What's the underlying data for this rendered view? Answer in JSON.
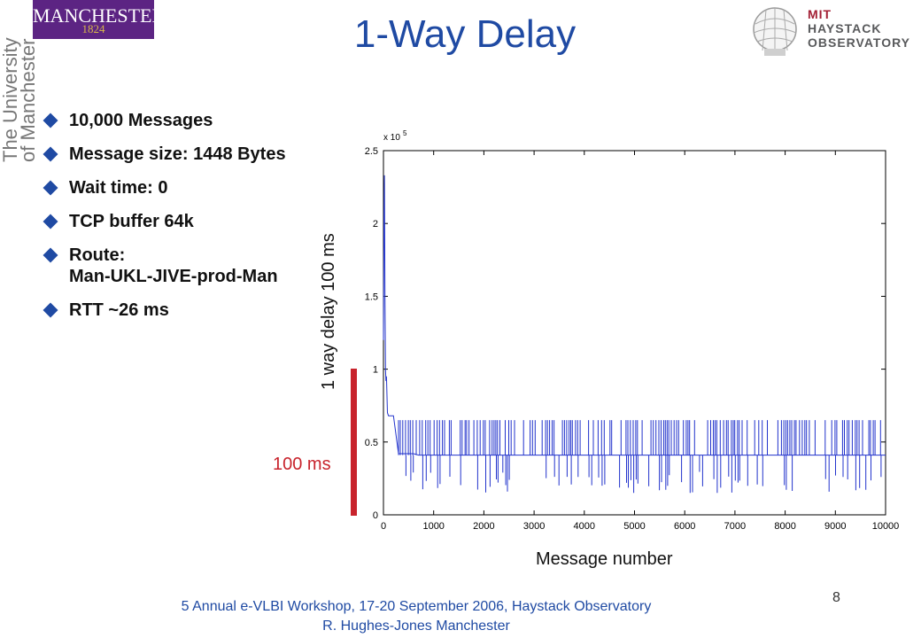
{
  "header": {
    "title": "1-Way Delay",
    "manchester_logo_text": "MANCHESTER",
    "manchester_logo_year": "1824",
    "university_line1": "The University",
    "university_line2": "of Manchester",
    "mit_line1": "MIT",
    "mit_line2": "HAYSTACK",
    "mit_line3": "OBSERVATORY"
  },
  "bullets": [
    "10,000 Messages",
    "Message size: 1448 Bytes",
    "Wait time: 0",
    "TCP buffer 64k",
    "Route:\nMan-UKL-JIVE-prod-Man",
    "RTT ~26 ms"
  ],
  "chart_data": {
    "type": "line",
    "title": "",
    "xlabel": "Message number",
    "ylabel": "1 way delay 100 ms",
    "exponent_label": "x 10",
    "exponent_power": "5",
    "xlim": [
      0,
      10000
    ],
    "ylim": [
      0,
      2.5
    ],
    "x_ticks": [
      0,
      1000,
      2000,
      3000,
      4000,
      5000,
      6000,
      7000,
      8000,
      9000,
      10000
    ],
    "y_ticks": [
      0,
      0.5,
      1,
      1.5,
      2,
      2.5
    ],
    "x_tick_labels": [
      "0",
      "1000",
      "2000",
      "3000",
      "4000",
      "5000",
      "6000",
      "7000",
      "8000",
      "9000",
      "10000"
    ],
    "y_tick_labels": [
      "0",
      "0.5",
      "1",
      "1.5",
      "2",
      "2.5"
    ],
    "series": [
      {
        "values_desc": "",
        "x": [
          0,
          10,
          20,
          30,
          40,
          50,
          60,
          80,
          100,
          120,
          150,
          200,
          300,
          400,
          500,
          600,
          700,
          800,
          1000,
          2000,
          3000,
          4000,
          5000,
          6000,
          7000,
          8000,
          9000,
          10000
        ],
        "y": [
          1.2,
          2.05,
          2.33,
          1.5,
          1.0,
          0.92,
          0.95,
          0.7,
          0.68,
          0.68,
          0.68,
          0.68,
          0.42,
          0.42,
          0.42,
          0.42,
          0.41,
          0.41,
          0.41,
          0.41,
          0.41,
          0.41,
          0.41,
          0.41,
          0.41,
          0.41,
          0.41,
          0.41
        ]
      }
    ],
    "spike_high": 0.65,
    "spike_low": 0.15,
    "color": "#2233cc"
  },
  "scale_bar_label": "100 ms",
  "footer": {
    "line1": "5 Annual e-VLBI Workshop, 17-20 September 2006, Haystack Observatory",
    "line2": "R. Hughes-Jones  Manchester"
  },
  "page_number": "8",
  "colors": {
    "title": "#1f4aa3",
    "manchester_purple": "#5c2483",
    "scale_bar": "#c8232c",
    "series": "#2233cc"
  }
}
